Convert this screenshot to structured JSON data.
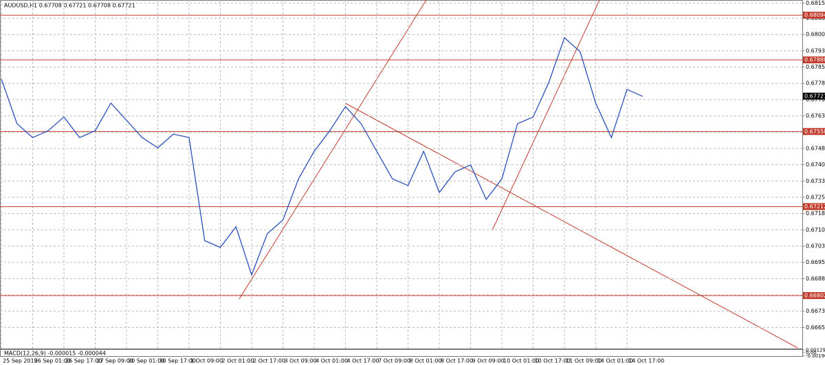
{
  "chart_data": {
    "type": "line",
    "title": "AUDUSD,H1  0.67708 0.67721 0.67708 0.67721",
    "categories": [
      "25 Sep 2019",
      null,
      "26 Sep 01:00",
      null,
      "26 Sep 17:00",
      null,
      "27 Sep 09:00",
      null,
      "30 Sep 01:00",
      null,
      "30 Sep 17:00",
      null,
      "1 Oct 09:00",
      null,
      "2 Oct 01:00",
      null,
      "2 Oct 17:00",
      null,
      "3 Oct 09:00",
      null,
      "4 Oct 01:00",
      null,
      "4 Oct 17:00",
      null,
      "7 Oct 09:00",
      null,
      "8 Oct 01:00",
      null,
      "8 Oct 17:00",
      null,
      "9 Oct 09:00",
      null,
      "10 Oct 01:00",
      null,
      "10 Oct 17:00",
      null,
      "11 Oct 09:00",
      null,
      "14 Oct 01:00",
      null,
      "14 Oct 17:00",
      null
    ],
    "series": [
      {
        "name": "AUDUSD",
        "color": "#2a4fb8",
        "values": [
          0.678,
          0.67594,
          0.6753,
          0.67562,
          0.67625,
          0.6753,
          0.67562,
          0.67689,
          0.6761,
          0.6753,
          0.67483,
          0.67546,
          0.6753,
          0.67055,
          0.67024,
          0.67119,
          0.66897,
          0.67087,
          0.6715,
          0.6734,
          0.67467,
          0.67562,
          0.67673,
          0.67594,
          0.67467,
          0.6734,
          0.67309,
          0.67467,
          0.67277,
          0.67372,
          0.67404,
          0.67245,
          0.6734,
          0.67594,
          0.67625,
          0.67784,
          0.6799,
          0.67926,
          0.67689,
          0.6753,
          0.67752,
          0.6772
        ]
      }
    ],
    "ylim": [
      0.66555,
      0.68164
    ],
    "yticks": [
      {
        "value": 0.6815,
        "label": "0.68150"
      },
      {
        "value": 0.6808,
        "label": "0.68080"
      },
      0.68005,
      {
        "value": 0.6793,
        "label": "0.67930"
      },
      0.67855,
      {
        "value": 0.6778,
        "label": "0.67780"
      },
      0.67705,
      {
        "value": 0.6763,
        "label": "0.67630"
      },
      0.67555,
      {
        "value": 0.6748,
        "label": "0.67480"
      },
      0.67405,
      {
        "value": 0.6733,
        "label": "0.67330"
      },
      0.67255,
      {
        "value": 0.6718,
        "label": "0.67180"
      },
      0.67105,
      {
        "value": 0.6703,
        "label": "0.67030"
      },
      0.66955,
      {
        "value": 0.6688,
        "label": "0.66880"
      },
      0.66805,
      {
        "value": 0.6673,
        "label": "0.66730"
      },
      0.66655
    ],
    "levels": [
      0.68094,
      0.67888,
      0.67558,
      0.67212,
      0.66802
    ],
    "level_color": "#c0392b",
    "current_price": 0.67721,
    "grid": true,
    "macd": {
      "label": "MACD(12,26,9) -0.000015 -0.000044",
      "yticks": [
        0.001297,
        {
          "value": 0,
          "label": "0.00"
        },
        {
          "value": -0.0019,
          "label": "-0.00190"
        }
      ],
      "ylim": [
        -0.0019,
        0.0014
      ]
    }
  }
}
